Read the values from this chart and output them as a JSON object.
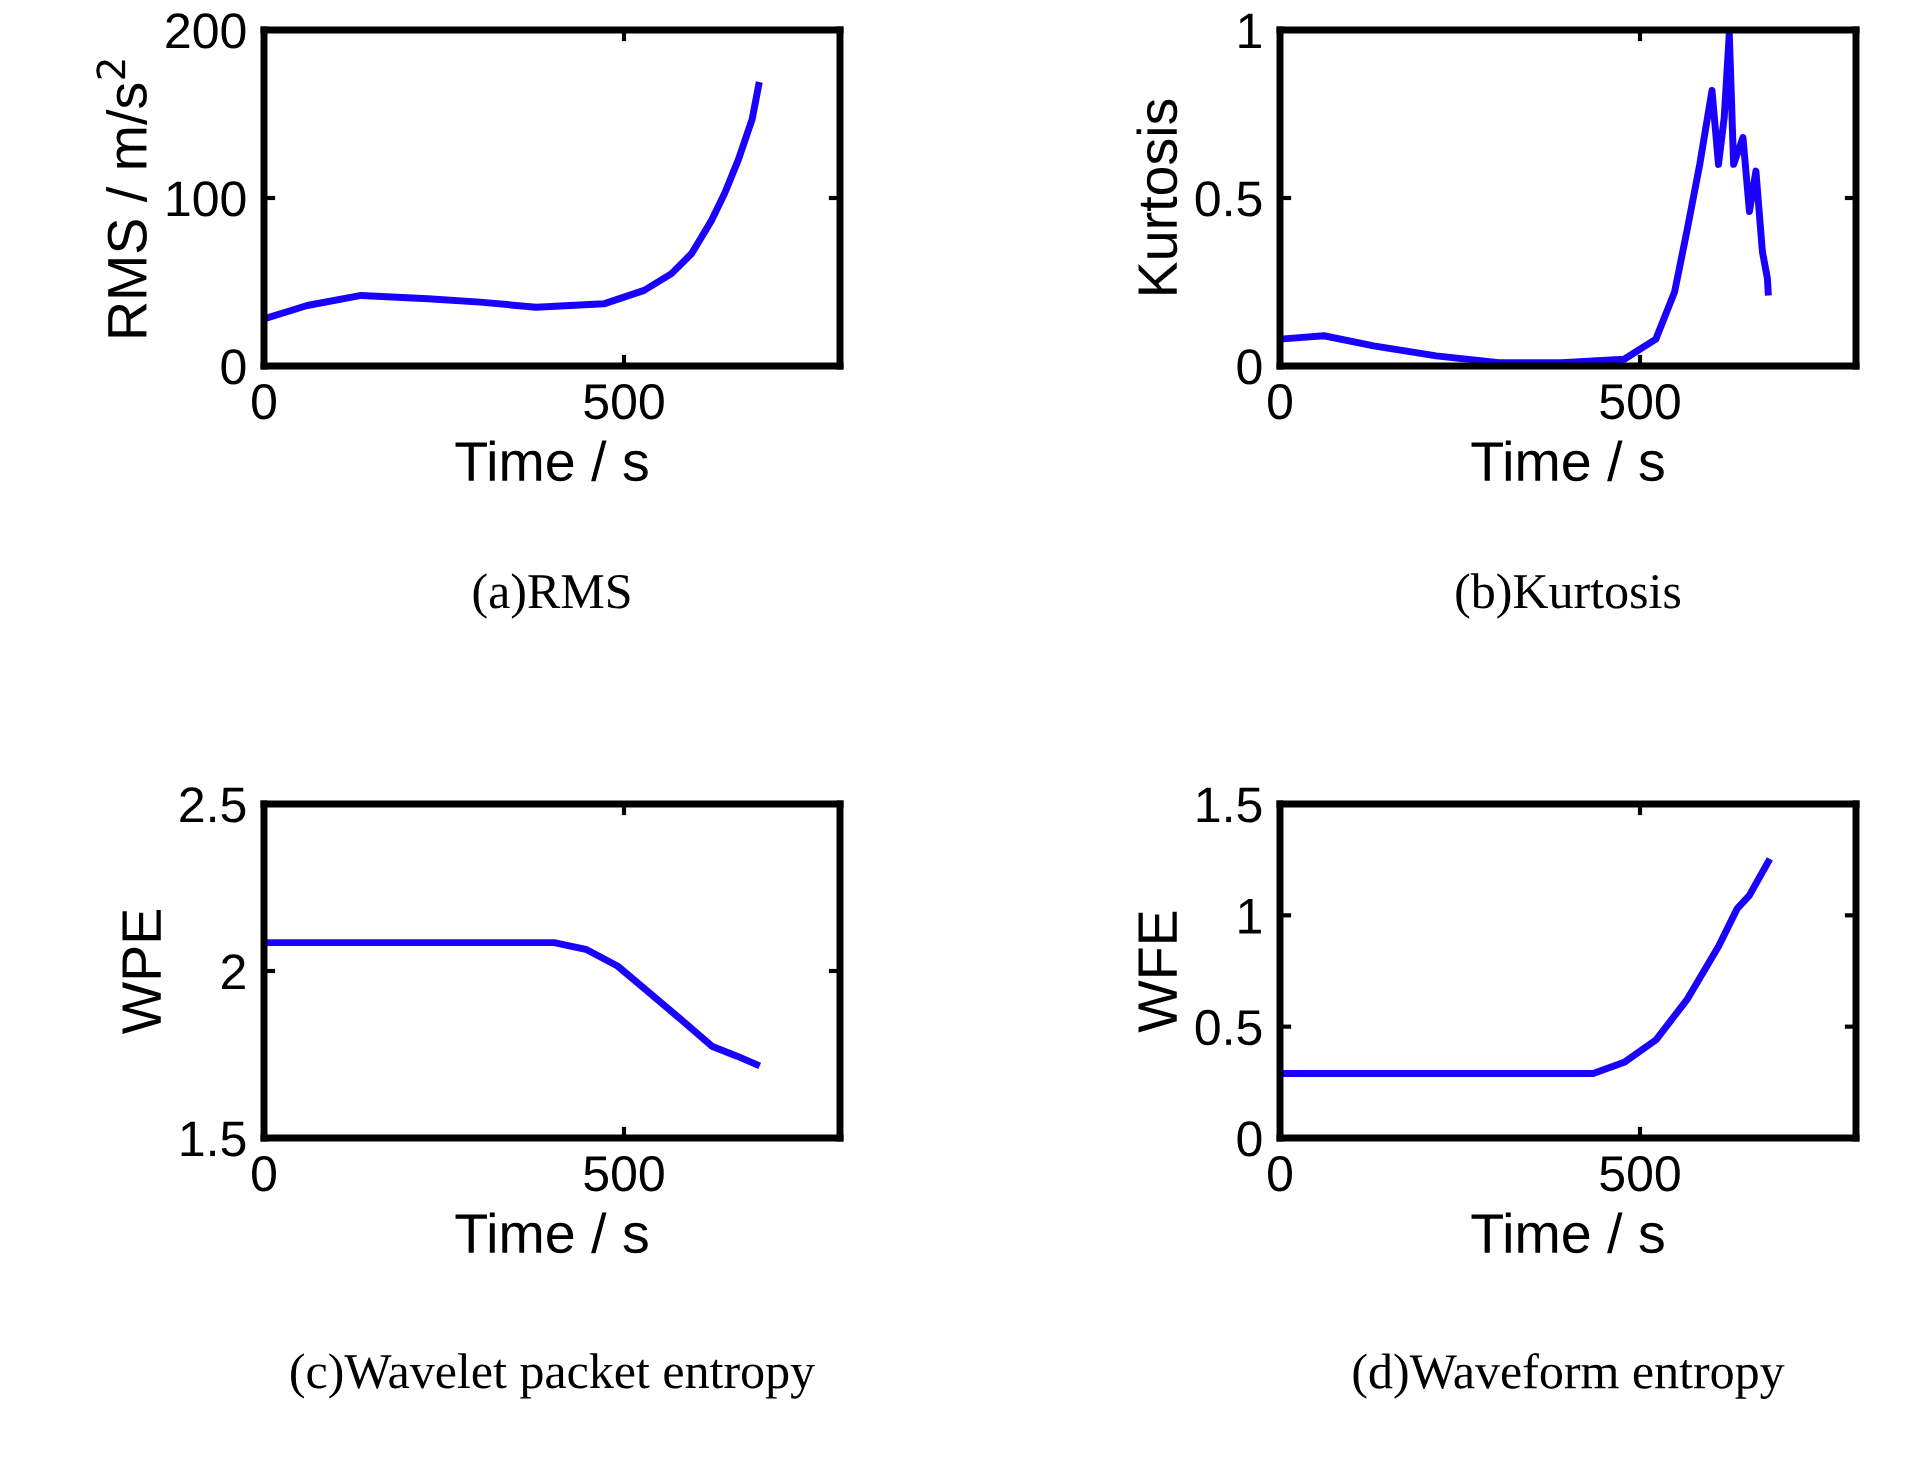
{
  "chart_data": [
    {
      "type": "line",
      "xlabel": "Time / s",
      "ylabel": "RMS / m/s$^{2}$",
      "annotations": [
        "(a)RMS"
      ],
      "xlim": [
        0,
        800
      ],
      "xticks": [
        0,
        500
      ],
      "ylim": [
        0,
        200
      ],
      "yticks": [
        0,
        100,
        200
      ],
      "grid": false,
      "legend": false,
      "series": [
        {
          "color": "#1a00ff",
          "x": [
            0,
            60,
            135,
            228,
            300,
            378,
            472,
            528,
            566,
            594,
            622,
            640,
            659,
            678,
            687
          ],
          "values": [
            28,
            36,
            42,
            40,
            38,
            35,
            37,
            45,
            55,
            67,
            87,
            103,
            123,
            147,
            167
          ]
        }
      ]
    },
    {
      "type": "line",
      "xlabel": "Time / s",
      "ylabel": "Kurtosis",
      "annotations": [
        "(b)Kurtosis"
      ],
      "xlim": [
        0,
        800
      ],
      "xticks": [
        0,
        500
      ],
      "ylim": [
        0,
        1
      ],
      "yticks": [
        0,
        0.5,
        1
      ],
      "grid": false,
      "legend": false,
      "series": [
        {
          "color": "#1a00ff",
          "x": [
            0,
            61,
            130,
            217,
            304,
            391,
            478,
            522,
            548,
            565,
            583,
            600,
            609,
            617,
            624,
            630,
            643,
            652,
            661,
            670,
            677,
            678
          ],
          "values": [
            0.08,
            0.09,
            0.06,
            0.03,
            0.01,
            0.01,
            0.02,
            0.08,
            0.22,
            0.4,
            0.6,
            0.82,
            0.6,
            0.74,
            0.99,
            0.6,
            0.68,
            0.46,
            0.58,
            0.34,
            0.26,
            0.22
          ]
        }
      ]
    },
    {
      "type": "line",
      "xlabel": "Time / s",
      "ylabel": "WPE",
      "annotations": [
        "(c)Wavelet packet entropy"
      ],
      "xlim": [
        0,
        800
      ],
      "xticks": [
        0,
        500
      ],
      "ylim": [
        1.5,
        2.5
      ],
      "yticks": [
        1.5,
        2,
        2.5
      ],
      "grid": false,
      "legend": false,
      "series": [
        {
          "color": "#1a00ff",
          "x": [
            0,
            200,
            403,
            447,
            491,
            535,
            579,
            622,
            657,
            684
          ],
          "values": [
            2.085,
            2.085,
            2.085,
            2.065,
            2.015,
            1.935,
            1.855,
            1.775,
            1.745,
            1.72
          ]
        }
      ]
    },
    {
      "type": "line",
      "xlabel": "Time / s",
      "ylabel": "WFE",
      "annotations": [
        "(d)Waveform entropy"
      ],
      "xlim": [
        0,
        800
      ],
      "xticks": [
        0,
        500
      ],
      "ylim": [
        0,
        1.5
      ],
      "yticks": [
        0,
        0.5,
        1,
        1.5
      ],
      "grid": false,
      "legend": false,
      "series": [
        {
          "color": "#1a00ff",
          "x": [
            0,
            200,
            435,
            478,
            522,
            565,
            609,
            635,
            652,
            678
          ],
          "values": [
            0.29,
            0.29,
            0.29,
            0.34,
            0.44,
            0.62,
            0.86,
            1.03,
            1.09,
            1.24
          ]
        }
      ]
    }
  ]
}
